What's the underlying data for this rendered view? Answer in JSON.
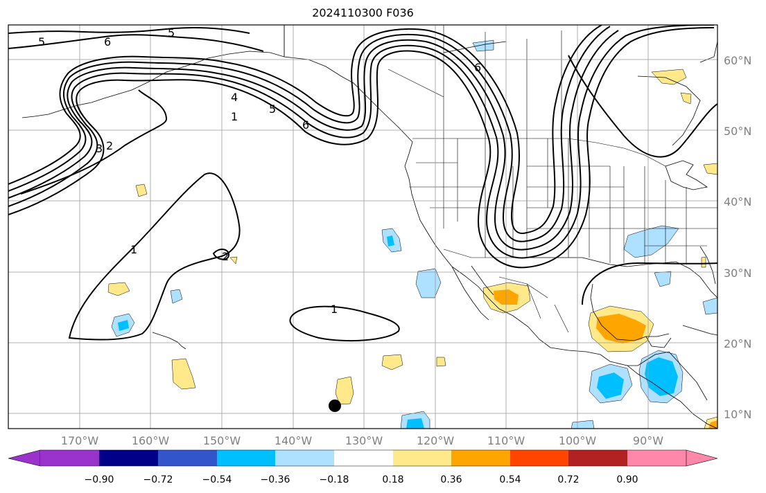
{
  "title": "2024110300 F036",
  "map": {
    "lat_labels": [
      "60°N",
      "50°N",
      "40°N",
      "30°N",
      "20°N",
      "10°N"
    ],
    "lon_labels": [
      "170°W",
      "160°W",
      "150°W",
      "140°W",
      "130°W",
      "120°W",
      "110°W",
      "100°W",
      "90°W"
    ],
    "contour_labels": [
      "5",
      "6",
      "5",
      "6",
      "4",
      "5",
      "6",
      "1",
      "3",
      "2",
      "1",
      "2",
      "1"
    ],
    "label_color": "#808080",
    "grid_color": "#999999"
  },
  "colorbar": {
    "ticks": [
      "−0.90",
      "−0.72",
      "−0.54",
      "−0.36",
      "−0.18",
      "0.18",
      "0.36",
      "0.54",
      "0.72",
      "0.90"
    ],
    "colors": [
      "#9933cc",
      "#000088",
      "#3355cc",
      "#00bfff",
      "#aee0ff",
      "#ffffff",
      "#ffe98a",
      "#ffa500",
      "#ff4500",
      "#b22222",
      "#ff88aa"
    ]
  },
  "marker": {
    "name": "black-dot",
    "color": "#000000"
  }
}
